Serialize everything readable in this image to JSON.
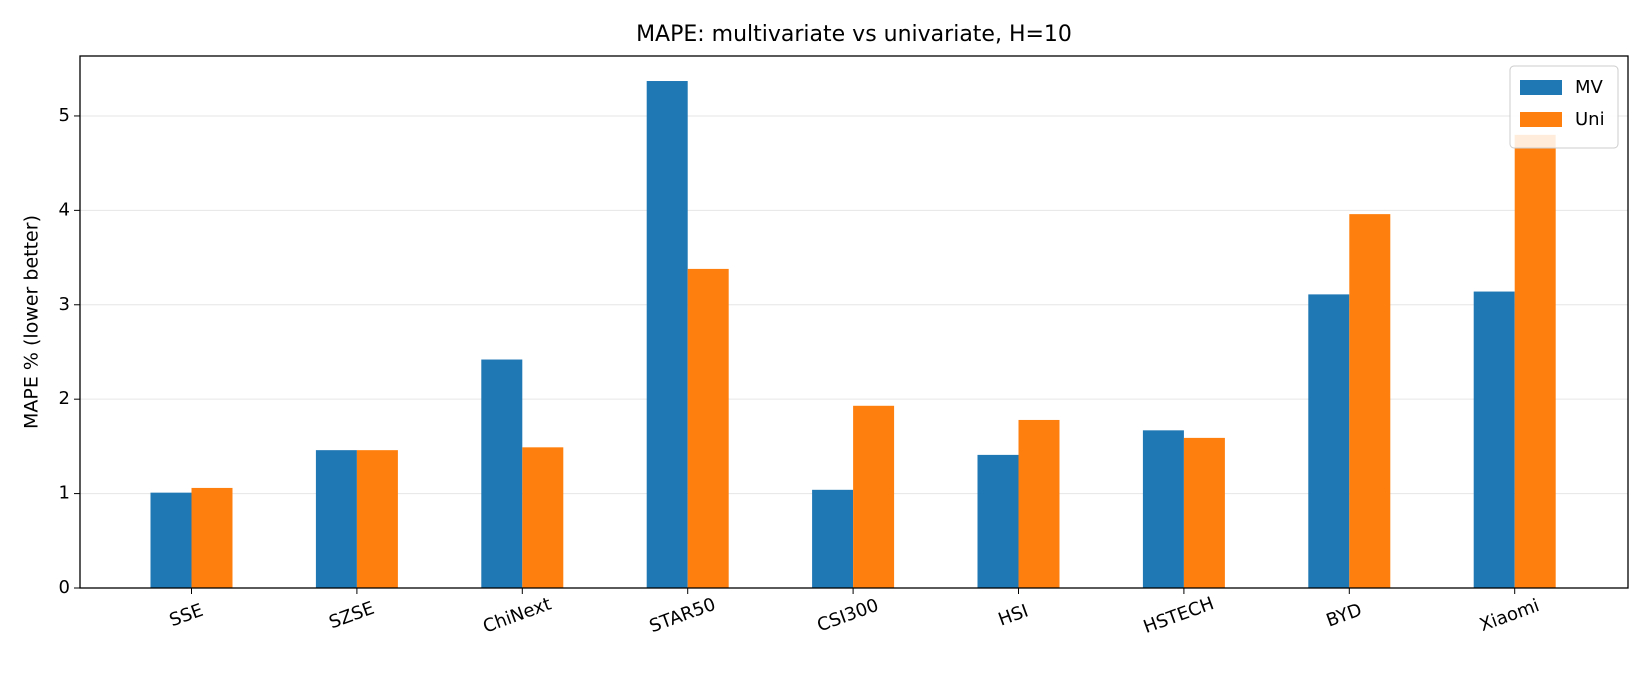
{
  "chart_data": {
    "type": "bar",
    "title": "MAPE: multivariate vs univariate, H=10",
    "y_label": "MAPE % (lower better)",
    "categories": [
      "SSE",
      "SZSE",
      "ChiNext",
      "STAR50",
      "CSI300",
      "HSI",
      "HSTECH",
      "BYD",
      "Xiaomi"
    ],
    "series": [
      {
        "name": "MV",
        "color": "#1f77b4",
        "values": [
          1.01,
          1.46,
          2.42,
          5.37,
          1.04,
          1.41,
          1.67,
          3.11,
          3.14
        ]
      },
      {
        "name": "Uni",
        "color": "#ff7f0e",
        "values": [
          1.06,
          1.46,
          1.49,
          3.38,
          1.93,
          1.78,
          1.59,
          3.96,
          4.8
        ]
      }
    ],
    "ylim": [
      0,
      5.635
    ],
    "yticks": [
      0,
      1,
      2,
      3,
      4,
      5
    ],
    "grid": true,
    "legend": "upper-right"
  }
}
